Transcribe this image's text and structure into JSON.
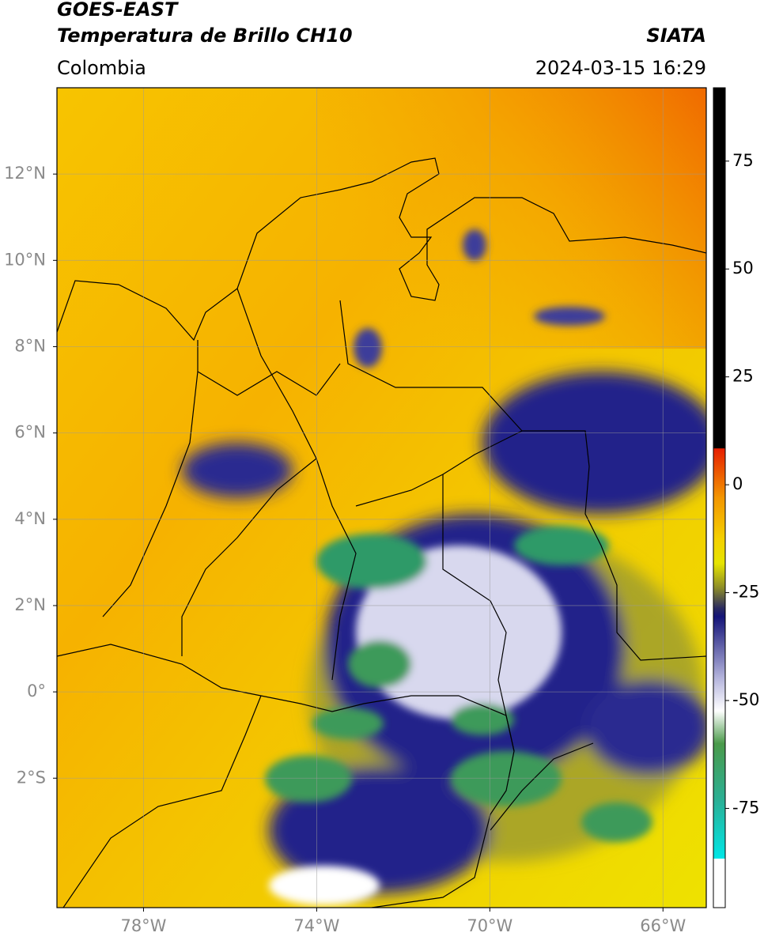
{
  "header": {
    "title": "GOES-EAST",
    "subtitle": "Temperatura de Brillo CH10",
    "source": "SIATA",
    "region": "Colombia",
    "timestamp": "2024-03-15 16:29"
  },
  "map": {
    "xlim": [
      -80,
      -65
    ],
    "ylim": [
      -5,
      14
    ],
    "lat_ticks": [
      {
        "value": 12,
        "label": "12°N"
      },
      {
        "value": 10,
        "label": "10°N"
      },
      {
        "value": 8,
        "label": "8°N"
      },
      {
        "value": 6,
        "label": "6°N"
      },
      {
        "value": 4,
        "label": "4°N"
      },
      {
        "value": 2,
        "label": "2°N"
      },
      {
        "value": 0,
        "label": "0°"
      },
      {
        "value": -2,
        "label": "2°S"
      }
    ],
    "lon_ticks": [
      {
        "value": -78,
        "label": "78°W"
      },
      {
        "value": -74,
        "label": "74°W"
      },
      {
        "value": -70,
        "label": "70°W"
      },
      {
        "value": -66,
        "label": "66°W"
      }
    ],
    "grid": true
  },
  "colorbar": {
    "range": [
      -98,
      92
    ],
    "ticks": [
      75,
      50,
      25,
      0,
      -25,
      -50,
      -75
    ]
  }
}
